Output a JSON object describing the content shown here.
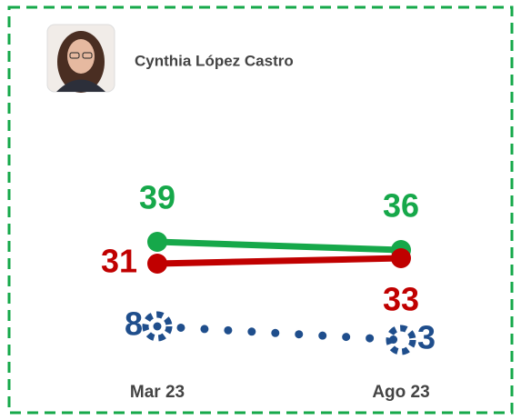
{
  "chart_data": {
    "type": "line",
    "title": "Cynthia López Castro",
    "categories": [
      "Mar 23",
      "Ago 23"
    ],
    "series": [
      {
        "color": "#16a84a",
        "values": [
          39,
          36
        ]
      },
      {
        "color": "#c00000",
        "values": [
          31,
          33
        ]
      },
      {
        "color": "#1f4e8c",
        "values": [
          8,
          3
        ],
        "dotted": true
      }
    ]
  }
}
